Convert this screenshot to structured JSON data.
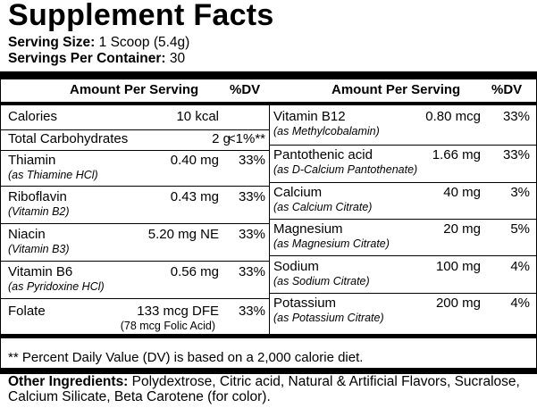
{
  "title": "Supplement Facts",
  "serving_size": {
    "label": "Serving Size:",
    "value": "1 Scoop (5.4g)"
  },
  "servings_per_container": {
    "label": "Servings Per Container:",
    "value": "30"
  },
  "headers": {
    "amount": "Amount Per Serving",
    "dv": "%DV"
  },
  "left": [
    {
      "name": "Calories",
      "sub": "",
      "amount": "10 kcal",
      "dv": ""
    },
    {
      "name": "Total Carbohydrates",
      "sub": "",
      "amount": "2 g",
      "dv": "<1%**"
    },
    {
      "name": "Thiamin",
      "sub": "(as Thiamine HCl)",
      "amount": "0.40 mg",
      "dv": "33%"
    },
    {
      "name": "Riboflavin",
      "sub": "(Vitamin B2)",
      "amount": "0.43 mg",
      "dv": "33%"
    },
    {
      "name": "Niacin",
      "sub": "(Vitamin B3)",
      "amount": "5.20 mg NE",
      "dv": "33%"
    },
    {
      "name": "Vitamin B6",
      "sub": "(as Pyridoxine HCl)",
      "amount": "0.56 mg",
      "dv": "33%"
    },
    {
      "name": "Folate",
      "sub": "",
      "amount": "133 mcg DFE",
      "amount_sub": "(78 mcg Folic Acid)",
      "dv": "33%"
    }
  ],
  "right": [
    {
      "name": "Vitamin B12",
      "sub": "(as Methylcobalamin)",
      "amount": "0.80 mcg",
      "dv": "33%"
    },
    {
      "name": "Pantothenic acid",
      "sub": "(as D-Calcium Pantothenate)",
      "amount": "1.66 mg",
      "dv": "33%"
    },
    {
      "name": "Calcium",
      "sub": "(as Calcium Citrate)",
      "amount": "40 mg",
      "dv": "3%"
    },
    {
      "name": "Magnesium",
      "sub": "(as Magnesium Citrate)",
      "amount": "20 mg",
      "dv": "5%"
    },
    {
      "name": "Sodium",
      "sub": "(as Sodium Citrate)",
      "amount": "100 mg",
      "dv": "4%"
    },
    {
      "name": "Potassium",
      "sub": "(as Potassium Citrate)",
      "amount": "200 mg",
      "dv": "4%"
    }
  ],
  "footnote": "** Percent Daily Value (DV) is based on a 2,000 calorie diet.",
  "other_ingredients": {
    "label": "Other Ingredients:",
    "value": " Polydextrose, Citric acid, Natural & Artificial Flavors, Sucralose, Calcium Silicate, Beta Carotene (for color)."
  }
}
